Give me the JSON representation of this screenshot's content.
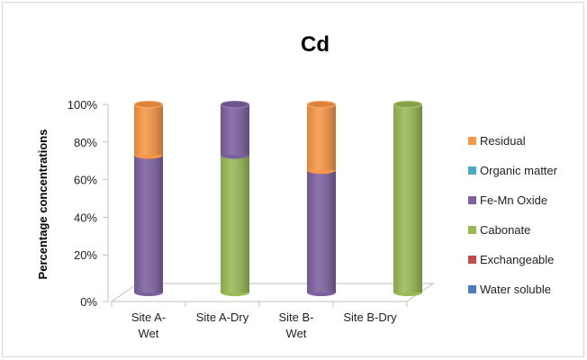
{
  "chart_data": {
    "type": "bar",
    "stacked": true,
    "percent_stacked": true,
    "style": "3d-cylinder",
    "title": "Cd",
    "xlabel": "",
    "ylabel": "Percentage concentrations",
    "ylim": [
      0,
      100
    ],
    "yticks": [
      "0%",
      "20%",
      "40%",
      "60%",
      "80%",
      "100%"
    ],
    "grid": false,
    "legend_position": "right",
    "categories": [
      {
        "line1": "Site A-",
        "line2": "Wet"
      },
      {
        "line1": "Site A-Dry",
        "line2": ""
      },
      {
        "line1": "Site B-",
        "line2": "Wet"
      },
      {
        "line1": "Site B-Dry",
        "line2": ""
      }
    ],
    "series": [
      {
        "name": "Water soluble",
        "color": "#4a7ebb",
        "values": [
          0,
          0,
          0,
          0
        ]
      },
      {
        "name": "Exchangeable",
        "color": "#be4b48",
        "values": [
          0,
          0,
          0,
          0
        ]
      },
      {
        "name": "Cabonate",
        "color": "#98b954",
        "values": [
          0,
          73,
          0,
          100
        ]
      },
      {
        "name": "Fe-Mn Oxide",
        "color": "#7d60a0",
        "values": [
          73,
          27,
          65,
          0
        ]
      },
      {
        "name": "Organic matter",
        "color": "#46aac5",
        "values": [
          0,
          0,
          0,
          0
        ]
      },
      {
        "name": "Residual",
        "color": "#f79646",
        "values": [
          27,
          0,
          35,
          0
        ]
      }
    ]
  }
}
